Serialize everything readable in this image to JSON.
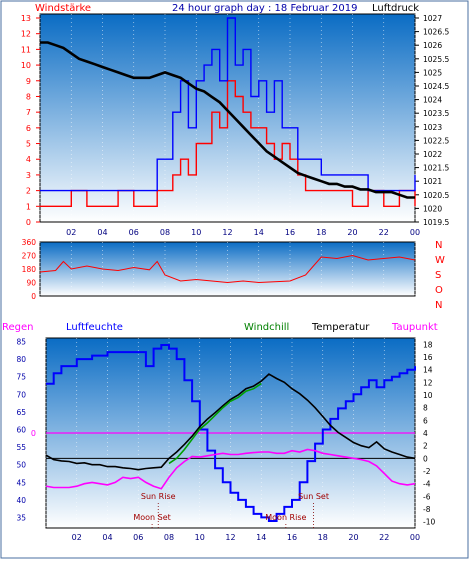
{
  "header": {
    "left": "Windstärke",
    "title": "24 hour graph day : 18 Februar 2019",
    "right": "Luftdruck"
  },
  "legend": {
    "regen": "Regen",
    "luftfeuchte": "Luftfeuchte",
    "windchill": "Windchill",
    "temperatur": "Temperatur",
    "taupunkt": "Taupunkt"
  },
  "colors": {
    "wind_avg": "#ff0000",
    "wind_gust": "#0000ff",
    "pressure": "#000000",
    "direction": "#ff0000",
    "humidity": "#0000ff",
    "temperature": "#000000",
    "windchill": "#00a000",
    "dewpoint": "#ff00ff",
    "bg_top": "#0a6cc4",
    "bg_bottom": "#ffffff"
  },
  "chart_data": [
    {
      "type": "line",
      "name": "wind_pressure",
      "x_ticks": [
        "02",
        "04",
        "06",
        "08",
        "10",
        "12",
        "14",
        "16",
        "18",
        "20",
        "22",
        "00"
      ],
      "y_left_ticks": [
        0,
        1,
        2,
        3,
        4,
        5,
        6,
        7,
        8,
        9,
        10,
        11,
        12,
        13
      ],
      "y_left_range": [
        0,
        13
      ],
      "y_right_ticks": [
        1019.5,
        1020,
        1020.5,
        1021,
        1021.5,
        1022,
        1022.5,
        1023,
        1023.5,
        1024,
        1024.5,
        1025,
        1025.5,
        1026,
        1026.5,
        1027
      ],
      "y_right_range": [
        1019.5,
        1027
      ],
      "series": [
        {
          "name": "Windstärke",
          "key": "wind",
          "axis": "left",
          "x": [
            0,
            1,
            2,
            3,
            4,
            5,
            6,
            7,
            7.5,
            8,
            8.5,
            9,
            9.5,
            10,
            10.5,
            11,
            11.5,
            12,
            12.5,
            13,
            13.5,
            14,
            14.5,
            15,
            15.5,
            16,
            16.5,
            17,
            18,
            19,
            20,
            21,
            22,
            23,
            24
          ],
          "y": [
            1,
            1,
            2,
            1,
            1,
            2,
            1,
            1,
            2,
            2,
            3,
            4,
            3,
            5,
            5,
            7,
            6,
            9,
            8,
            7,
            6,
            6,
            5,
            4,
            5,
            4,
            3,
            2,
            2,
            2,
            1,
            2,
            1,
            2,
            1
          ]
        },
        {
          "name": "Böen",
          "key": "gust",
          "axis": "left",
          "x": [
            0,
            2,
            4,
            6,
            7,
            7.5,
            8,
            8.5,
            9,
            9.5,
            10,
            10.5,
            11,
            11.5,
            12,
            12.5,
            13,
            13.5,
            14,
            14.5,
            15,
            15.5,
            16,
            16.5,
            17,
            18,
            19,
            20,
            21,
            22,
            23,
            24
          ],
          "y": [
            2,
            2,
            2,
            2,
            2,
            4,
            4,
            7,
            9,
            6,
            9,
            10,
            11,
            9,
            13,
            10,
            11,
            8,
            9,
            7,
            9,
            6,
            6,
            4,
            4,
            3,
            3,
            3,
            2,
            2,
            2,
            3
          ]
        },
        {
          "name": "Luftdruck",
          "key": "pressure",
          "axis": "right",
          "x": [
            0,
            0.5,
            1,
            1.5,
            2,
            2.5,
            3,
            3.5,
            4,
            4.5,
            5,
            5.5,
            6,
            6.5,
            7,
            7.5,
            8,
            8.5,
            9,
            9.5,
            10,
            10.5,
            11,
            11.5,
            12,
            12.5,
            13,
            13.5,
            14,
            14.5,
            15,
            15.5,
            16,
            16.5,
            17,
            17.5,
            18,
            18.5,
            19,
            19.5,
            20,
            20.5,
            21,
            21.5,
            22,
            22.5,
            23,
            23.5,
            24
          ],
          "y": [
            1026.1,
            1026.1,
            1026.0,
            1025.9,
            1025.7,
            1025.5,
            1025.4,
            1025.3,
            1025.2,
            1025.1,
            1025.0,
            1024.9,
            1024.8,
            1024.8,
            1024.8,
            1024.9,
            1025.0,
            1024.9,
            1024.8,
            1024.6,
            1024.4,
            1024.3,
            1024.1,
            1023.9,
            1023.6,
            1023.3,
            1023.0,
            1022.7,
            1022.4,
            1022.1,
            1021.9,
            1021.7,
            1021.5,
            1021.3,
            1021.2,
            1021.1,
            1021.0,
            1020.9,
            1020.9,
            1020.8,
            1020.8,
            1020.7,
            1020.7,
            1020.6,
            1020.6,
            1020.6,
            1020.5,
            1020.4,
            1020.4
          ]
        }
      ]
    },
    {
      "type": "line",
      "name": "wind_direction",
      "y_left_ticks": [
        0,
        90,
        180,
        270,
        360
      ],
      "y_range": [
        0,
        360
      ],
      "y_right_labels": [
        "N",
        "W",
        "S",
        "O",
        "N"
      ],
      "series": [
        {
          "name": "Windrichtung",
          "key": "direction",
          "x": [
            0,
            1,
            1.5,
            2,
            3,
            4,
            5,
            6,
            7,
            7.5,
            8,
            9,
            10,
            11,
            12,
            13,
            14,
            15,
            16,
            17,
            17.5,
            18,
            19,
            20,
            21,
            22,
            23,
            24
          ],
          "y": [
            160,
            170,
            230,
            180,
            200,
            180,
            170,
            190,
            175,
            230,
            140,
            100,
            110,
            100,
            90,
            100,
            90,
            95,
            100,
            140,
            200,
            260,
            250,
            270,
            240,
            250,
            260,
            240
          ]
        }
      ]
    },
    {
      "type": "line",
      "name": "humidity_temperature",
      "y_left_ticks": [
        35,
        40,
        45,
        50,
        55,
        60,
        65,
        70,
        75,
        80,
        85
      ],
      "y_left_range": [
        32,
        86
      ],
      "y_right_ticks": [
        -10,
        -8,
        -6,
        -4,
        -2,
        0,
        2,
        4,
        6,
        8,
        10,
        12,
        14,
        16,
        18
      ],
      "y_right_range": [
        -11,
        19
      ],
      "rain_label": "0",
      "annotations": [
        {
          "text": "Sun Rise",
          "x": 7.3
        },
        {
          "text": "Moon Set",
          "x": 6.9
        },
        {
          "text": "Moon Rise",
          "x": 15.6
        },
        {
          "text": "Sun Set",
          "x": 17.4
        }
      ],
      "series": [
        {
          "name": "Luftfeuchte",
          "key": "humidity",
          "axis": "left",
          "x": [
            0,
            0.5,
            1,
            2,
            3,
            4,
            5,
            6,
            6.5,
            7,
            7.5,
            8,
            8.5,
            9,
            9.5,
            10,
            10.5,
            11,
            11.5,
            12,
            12.5,
            13,
            13.5,
            14,
            14.5,
            15,
            15.5,
            16,
            16.5,
            17,
            17.5,
            18,
            18.5,
            19,
            19.5,
            20,
            20.5,
            21,
            21.5,
            22,
            22.5,
            23,
            23.5,
            24
          ],
          "y": [
            73,
            76,
            78,
            80,
            81,
            82,
            82,
            82,
            78,
            83,
            84,
            83,
            80,
            74,
            68,
            60,
            54,
            49,
            45,
            42,
            40,
            38,
            36,
            35,
            34,
            36,
            38,
            40,
            45,
            51,
            56,
            60,
            63,
            66,
            68,
            70,
            72,
            74,
            72,
            74,
            75,
            76,
            77,
            78
          ]
        },
        {
          "name": "Temperatur",
          "key": "temperature",
          "axis": "right",
          "x": [
            0,
            0.5,
            1,
            1.5,
            2,
            2.5,
            3,
            3.5,
            4,
            4.5,
            5,
            5.5,
            6,
            6.5,
            7,
            7.5,
            8,
            8.5,
            9,
            9.5,
            10,
            10.5,
            11,
            11.5,
            12,
            12.5,
            13,
            13.5,
            14,
            14.5,
            15,
            15.5,
            16,
            16.5,
            17,
            17.5,
            18,
            18.5,
            19,
            19.5,
            20,
            20.5,
            21,
            21.5,
            22,
            22.5,
            23,
            23.5,
            24
          ],
          "y": [
            0.5,
            -0.2,
            -0.4,
            -0.5,
            -0.8,
            -0.7,
            -1.0,
            -1.0,
            -1.3,
            -1.3,
            -1.5,
            -1.6,
            -1.8,
            -1.6,
            -1.5,
            -1.4,
            0.0,
            1.0,
            2.2,
            3.5,
            5.0,
            6.2,
            7.2,
            8.3,
            9.3,
            10.0,
            11.0,
            11.4,
            12.2,
            13.3,
            12.6,
            12.0,
            11.0,
            10.2,
            9.2,
            8.0,
            6.6,
            5.2,
            4.1,
            3.3,
            2.5,
            2.0,
            1.7,
            2.6,
            1.5,
            1.0,
            0.6,
            0.2,
            0.0
          ]
        },
        {
          "name": "Windchill",
          "key": "windchill",
          "axis": "right",
          "x": [
            8,
            8.5,
            9,
            9.5,
            10,
            10.5,
            11,
            11.5,
            12,
            12.5,
            13,
            13.5,
            14
          ],
          "y": [
            -0.8,
            0.0,
            1.4,
            3.0,
            4.6,
            5.6,
            6.8,
            8.0,
            9.0,
            9.6,
            10.6,
            11.0,
            11.8
          ]
        },
        {
          "name": "Taupunkt",
          "key": "dewpoint",
          "axis": "right",
          "x": [
            0,
            0.5,
            1,
            1.5,
            2,
            2.5,
            3,
            3.5,
            4,
            4.5,
            5,
            5.5,
            6,
            6.5,
            7,
            7.5,
            8,
            8.5,
            9,
            9.5,
            10,
            10.5,
            11,
            11.5,
            12,
            12.5,
            13,
            13.5,
            14,
            14.5,
            15,
            15.5,
            16,
            16.5,
            17,
            17.5,
            18,
            18.5,
            19,
            19.5,
            20,
            20.5,
            21,
            21.5,
            22,
            22.5,
            23,
            23.5,
            24
          ],
          "y": [
            -4.4,
            -4.6,
            -4.6,
            -4.6,
            -4.4,
            -4.0,
            -3.8,
            -4.0,
            -4.2,
            -3.8,
            -3.0,
            -3.2,
            -3.0,
            -3.8,
            -4.4,
            -4.8,
            -3.0,
            -1.5,
            -0.5,
            0.3,
            0.2,
            0.4,
            0.6,
            0.8,
            0.6,
            0.6,
            0.8,
            0.9,
            1.0,
            1.0,
            0.8,
            0.8,
            1.2,
            1.0,
            1.4,
            1.2,
            0.8,
            0.6,
            0.4,
            0.2,
            0.0,
            -0.2,
            -0.5,
            -1.2,
            -2.4,
            -3.6,
            -4.0,
            -4.2,
            -4.0
          ]
        }
      ]
    }
  ]
}
